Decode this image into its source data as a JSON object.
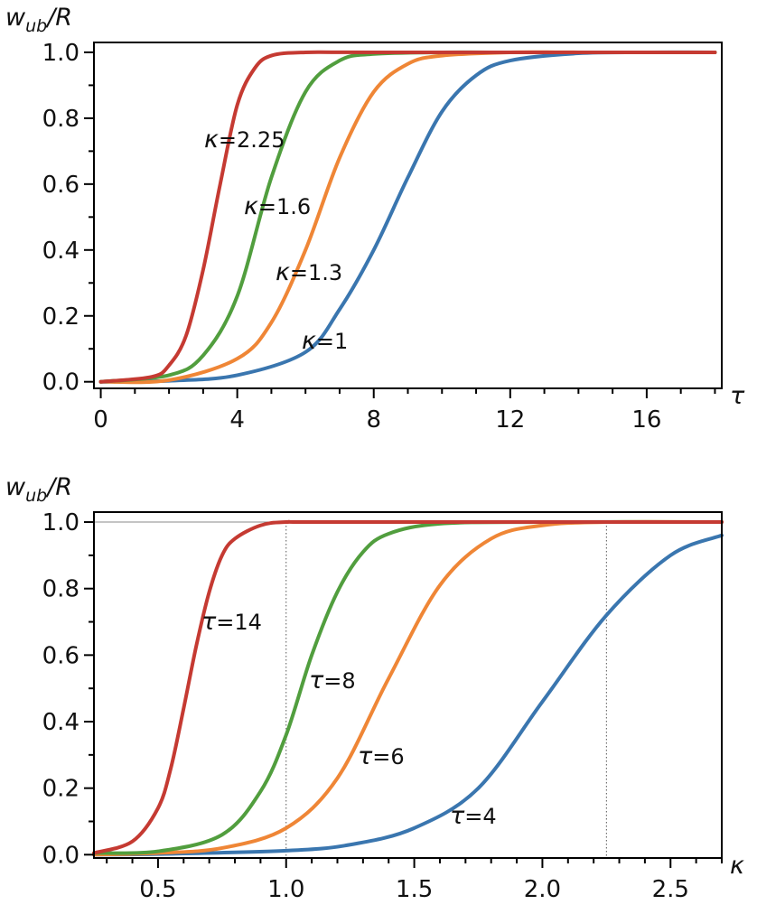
{
  "chart_data": [
    {
      "type": "line",
      "ylabel": "w_ub/R",
      "ylabel_main": "w",
      "ylabel_sub": "ub",
      "ylabel_suffix": "/R",
      "xlabel": "τ",
      "xlim": [
        -0.2,
        18.2
      ],
      "ylim": [
        -0.02,
        1.03
      ],
      "xticks": [
        0,
        4,
        8,
        12,
        16
      ],
      "xtick_labels": [
        "0",
        "4",
        "8",
        "12",
        "16"
      ],
      "yticks": [
        0.0,
        0.2,
        0.4,
        0.6,
        0.8,
        1.0
      ],
      "ytick_labels": [
        "0.0",
        "0.2",
        "0.4",
        "0.6",
        "0.8",
        "1.0"
      ],
      "series": [
        {
          "name": "κ=1",
          "symbol": "κ",
          "value_text": "=1",
          "color": "#3a76af",
          "x": [
            0,
            2,
            4,
            6,
            7,
            8,
            9,
            10,
            11,
            12,
            14,
            16,
            18
          ],
          "y": [
            0.0,
            0.003,
            0.02,
            0.09,
            0.22,
            0.4,
            0.62,
            0.82,
            0.93,
            0.975,
            0.997,
            1.0,
            1.0
          ]
        },
        {
          "name": "κ=1.3",
          "symbol": "κ",
          "value_text": "=1.3",
          "color": "#ef8636",
          "x": [
            0,
            2,
            4,
            5,
            6,
            7,
            8,
            9,
            10,
            12,
            14,
            18
          ],
          "y": [
            0.0,
            0.005,
            0.07,
            0.18,
            0.4,
            0.68,
            0.88,
            0.965,
            0.99,
            1.0,
            1.0,
            1.0
          ]
        },
        {
          "name": "κ=1.6",
          "symbol": "κ",
          "value_text": "=1.6",
          "color": "#519e3e",
          "x": [
            0,
            2,
            3,
            4,
            5,
            6,
            7,
            8,
            10,
            12,
            18
          ],
          "y": [
            0.0,
            0.02,
            0.08,
            0.26,
            0.62,
            0.88,
            0.975,
            0.995,
            1.0,
            1.0,
            1.0
          ]
        },
        {
          "name": "κ=2.25",
          "symbol": "κ",
          "value_text": "=2.25",
          "color": "#c53a32",
          "x": [
            0,
            1.5,
            2,
            2.5,
            3,
            3.5,
            4,
            4.5,
            5,
            6,
            8,
            18
          ],
          "y": [
            0.0,
            0.015,
            0.05,
            0.14,
            0.34,
            0.6,
            0.84,
            0.95,
            0.99,
            1.0,
            1.0,
            1.0
          ]
        }
      ]
    },
    {
      "type": "line",
      "ylabel": "w_ub/R",
      "ylabel_main": "w",
      "ylabel_sub": "ub",
      "ylabel_suffix": "/R",
      "xlabel": "κ",
      "xlim": [
        0.25,
        2.7
      ],
      "ylim": [
        -0.01,
        1.03
      ],
      "xticks": [
        0.5,
        1.0,
        1.5,
        2.0,
        2.5
      ],
      "xtick_labels": [
        "0.5",
        "1.0",
        "1.5",
        "2.0",
        "2.5"
      ],
      "yticks": [
        0.0,
        0.2,
        0.4,
        0.6,
        0.8,
        1.0
      ],
      "ytick_labels": [
        "0.0",
        "0.2",
        "0.4",
        "0.6",
        "0.8",
        "1.0"
      ],
      "reference_hline": 1.0,
      "reference_vlines": [
        1.0,
        2.25
      ],
      "series": [
        {
          "name": "τ=4",
          "symbol": "τ",
          "value_text": "=4",
          "color": "#3a76af",
          "x": [
            0.25,
            0.5,
            1.0,
            1.25,
            1.5,
            1.75,
            2.0,
            2.25,
            2.5,
            2.7
          ],
          "y": [
            0.0,
            0.002,
            0.012,
            0.03,
            0.08,
            0.2,
            0.46,
            0.72,
            0.9,
            0.96
          ]
        },
        {
          "name": "τ=6",
          "symbol": "τ",
          "value_text": "=6",
          "color": "#ef8636",
          "x": [
            0.25,
            0.5,
            0.75,
            1.0,
            1.2,
            1.4,
            1.6,
            1.8,
            2.0,
            2.25,
            2.7
          ],
          "y": [
            0.0,
            0.005,
            0.02,
            0.08,
            0.23,
            0.53,
            0.81,
            0.95,
            0.99,
            1.0,
            1.0
          ]
        },
        {
          "name": "τ=8",
          "symbol": "τ",
          "value_text": "=8",
          "color": "#519e3e",
          "x": [
            0.25,
            0.5,
            0.75,
            0.9,
            1.0,
            1.1,
            1.2,
            1.3,
            1.4,
            1.6,
            2.0,
            2.7
          ],
          "y": [
            0.005,
            0.01,
            0.06,
            0.19,
            0.36,
            0.6,
            0.79,
            0.91,
            0.965,
            0.995,
            1.0,
            1.0
          ]
        },
        {
          "name": "τ=14",
          "symbol": "τ",
          "value_text": "=14",
          "color": "#c53a32",
          "x": [
            0.25,
            0.4,
            0.5,
            0.55,
            0.6,
            0.65,
            0.7,
            0.75,
            0.8,
            0.9,
            1.0,
            1.2,
            2.7
          ],
          "y": [
            0.005,
            0.04,
            0.14,
            0.26,
            0.44,
            0.63,
            0.79,
            0.9,
            0.95,
            0.99,
            1.0,
            1.0,
            1.0
          ]
        }
      ]
    }
  ]
}
